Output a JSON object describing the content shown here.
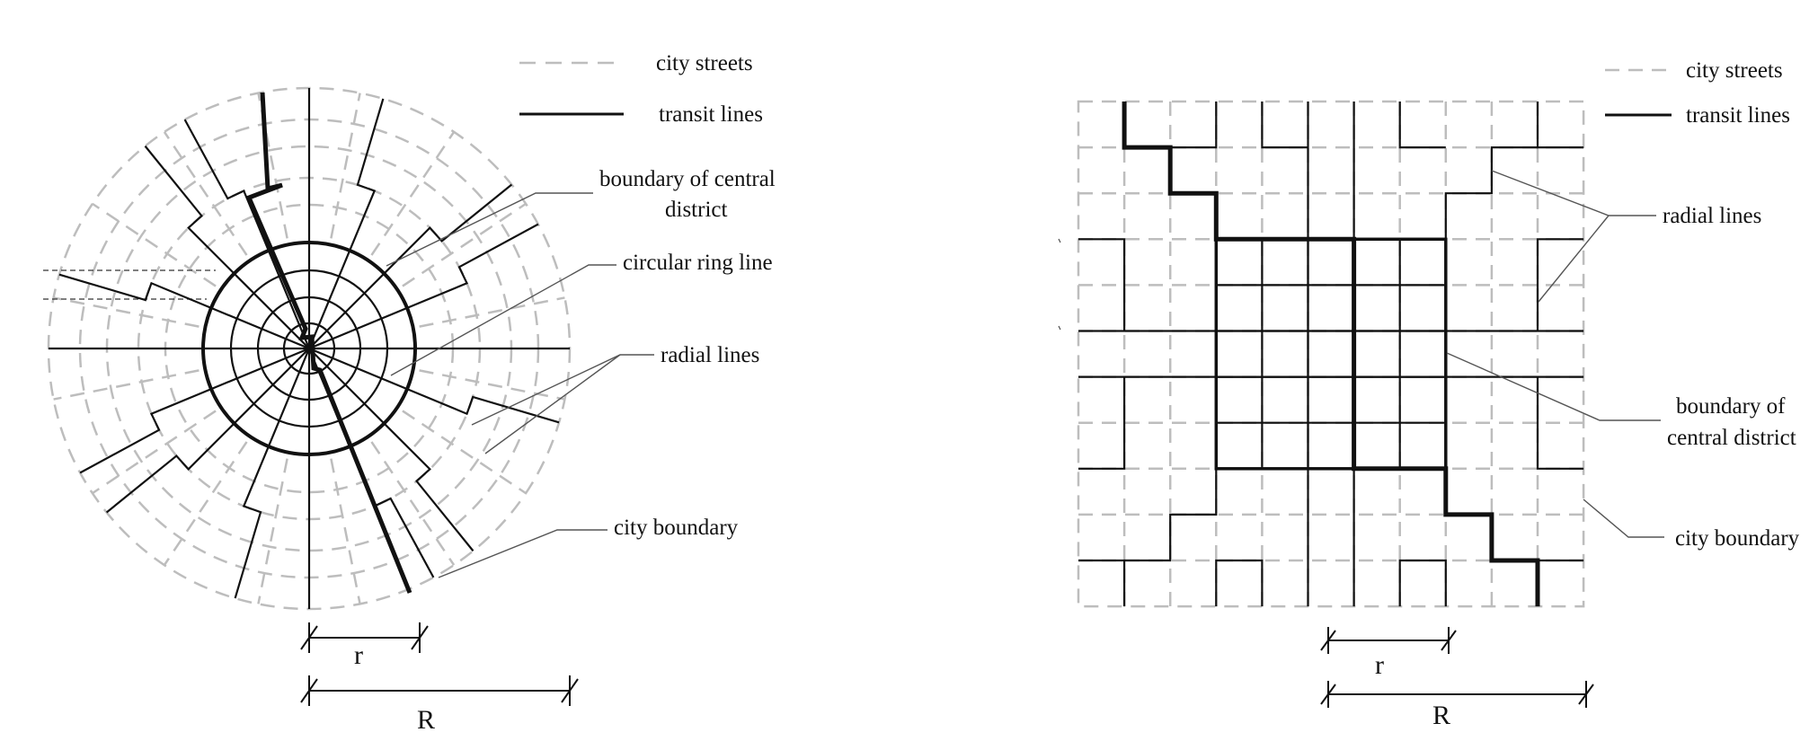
{
  "colors": {
    "street": "#bdbdbd",
    "line": "#111111",
    "leader": "#555555",
    "background": "#ffffff"
  },
  "radial_diagram": {
    "legend": {
      "streets": "city streets",
      "transit": "transit lines"
    },
    "labels": {
      "central_boundary_1": "boundary of central",
      "central_boundary_2": "district",
      "ring_line": "circular ring line",
      "radial_lines": "radial lines",
      "city_boundary": "city boundary"
    },
    "dimensions": {
      "small": "r",
      "large": "R"
    }
  },
  "grid_diagram": {
    "legend": {
      "streets": "city streets",
      "transit": "transit lines"
    },
    "labels": {
      "radial_lines": "radial lines",
      "central_boundary_1": "boundary of",
      "central_boundary_2": "central district",
      "city_boundary": "city boundary"
    },
    "dimensions": {
      "small": "r",
      "large": "R"
    }
  }
}
